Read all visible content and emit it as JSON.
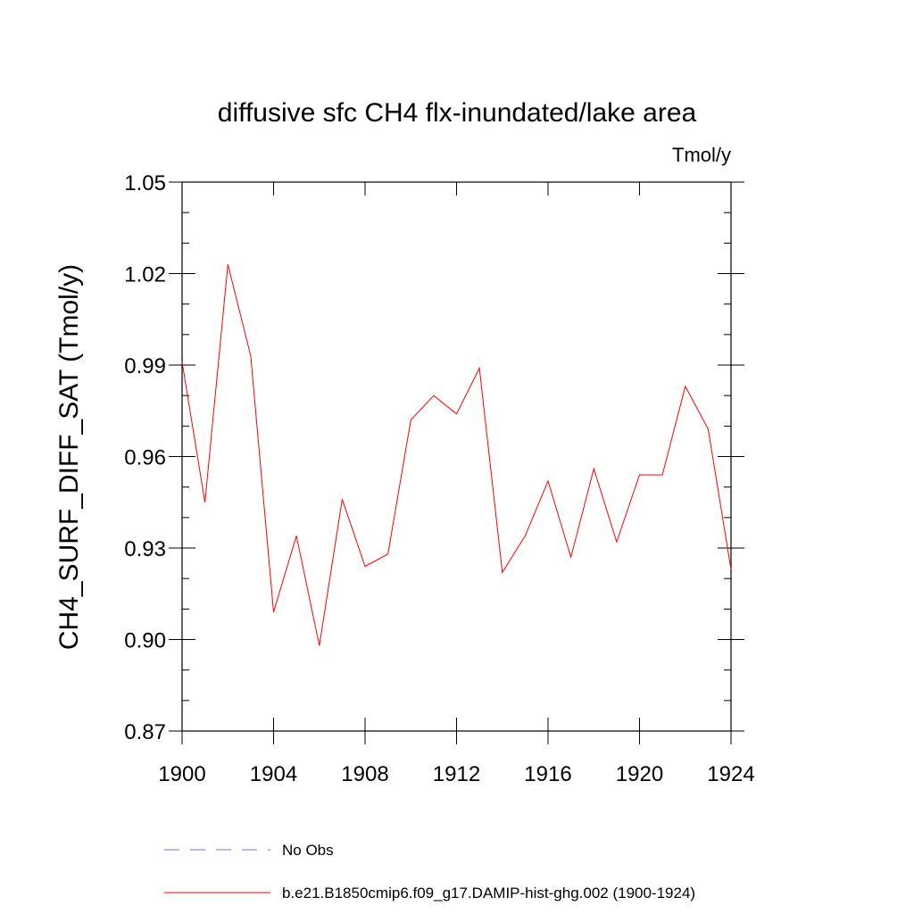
{
  "chart_data": {
    "type": "line",
    "title": "diffusive sfc CH4 flx-inundated/lake area",
    "units_label": "Tmol/y",
    "ylabel": "CH4_SURF_DIFF_SAT  (Tmol/y)",
    "xlabel": "",
    "xlim": [
      1900,
      1924
    ],
    "ylim": [
      0.87,
      1.05
    ],
    "x_ticks": [
      1900,
      1904,
      1908,
      1912,
      1916,
      1920,
      1924
    ],
    "x_tick_labels": [
      "1900",
      "1904",
      "1908",
      "1912",
      "1916",
      "1920",
      "1924"
    ],
    "y_ticks": [
      0.87,
      0.9,
      0.93,
      0.96,
      0.99,
      1.02,
      1.05
    ],
    "y_tick_labels": [
      "0.87",
      "0.90",
      "0.93",
      "0.96",
      "0.99",
      "1.02",
      "1.05"
    ],
    "grid": false,
    "legend_position": "bottom",
    "series": [
      {
        "name": "b.e21.B1850cmip6.f09_g17.DAMIP-hist-ghg.002 (1900-1924)",
        "color": "#ff0000",
        "style": "solid",
        "x": [
          1900,
          1901,
          1902,
          1903,
          1904,
          1905,
          1906,
          1907,
          1908,
          1909,
          1910,
          1911,
          1912,
          1913,
          1914,
          1915,
          1916,
          1917,
          1918,
          1919,
          1920,
          1921,
          1922,
          1923,
          1924
        ],
        "y": [
          0.991,
          0.945,
          1.023,
          0.993,
          0.909,
          0.934,
          0.898,
          0.946,
          0.924,
          0.928,
          0.972,
          0.98,
          0.974,
          0.989,
          0.922,
          0.934,
          0.952,
          0.927,
          0.956,
          0.932,
          0.954,
          0.954,
          0.983,
          0.969,
          0.923
        ]
      }
    ],
    "legend": [
      {
        "label": "No Obs",
        "color": "#7777cc",
        "style": "dashed"
      },
      {
        "label": "b.e21.B1850cmip6.f09_g17.DAMIP-hist-ghg.002 (1900-1924)",
        "color": "#ff0000",
        "style": "solid"
      }
    ]
  }
}
